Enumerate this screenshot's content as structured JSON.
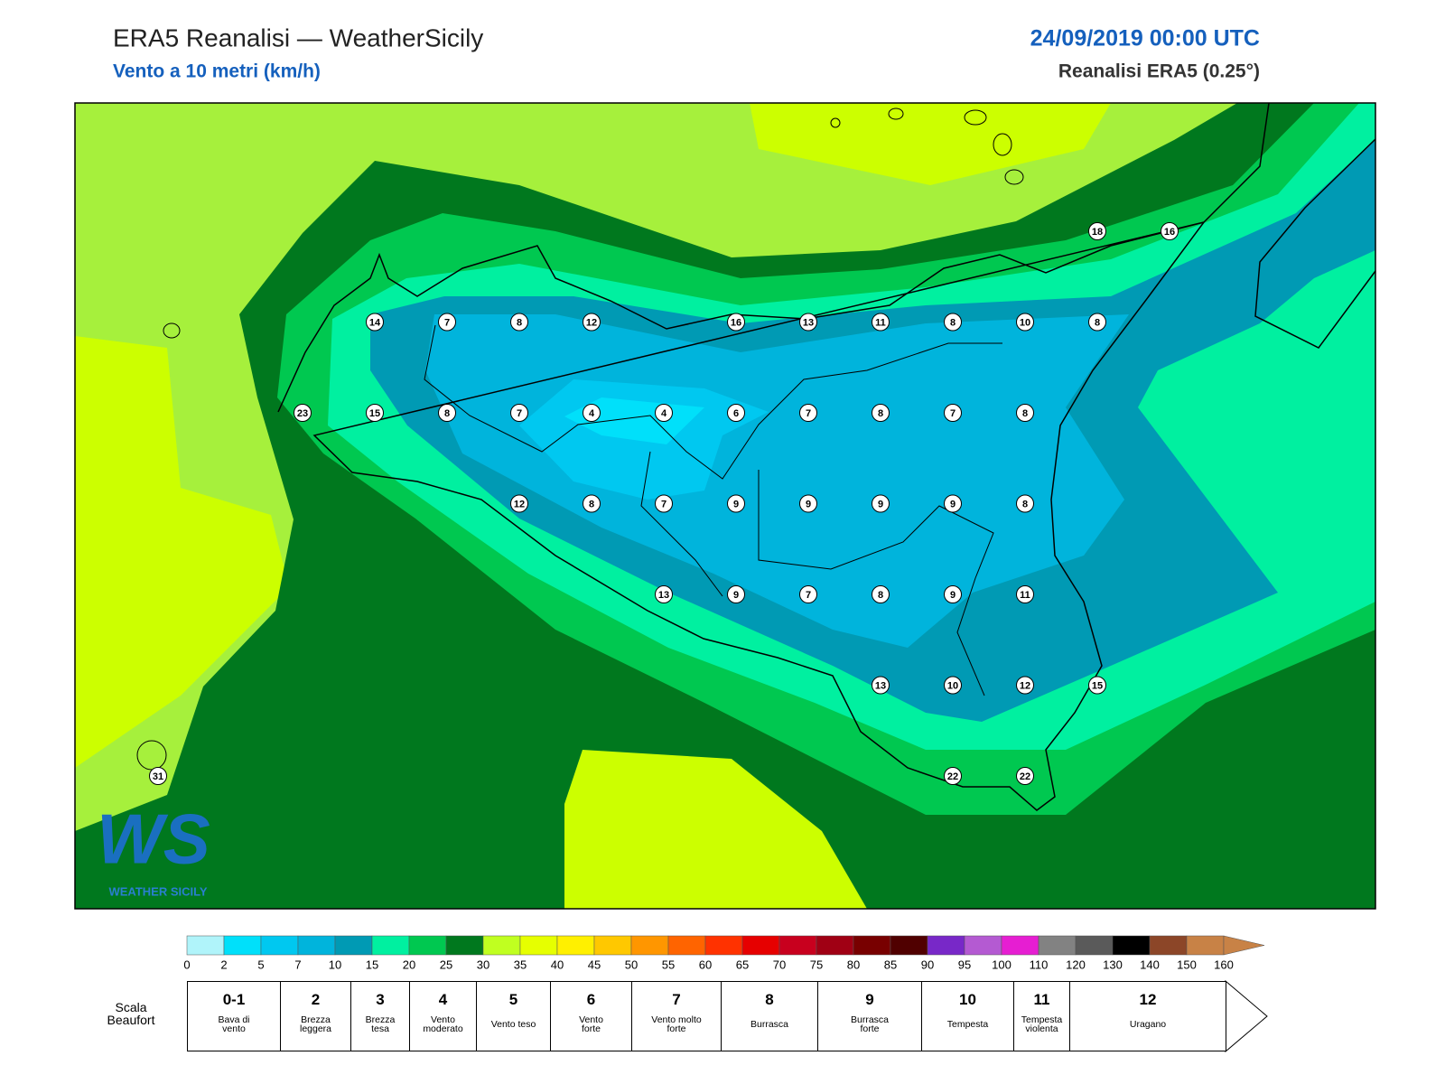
{
  "header": {
    "title": "ERA5 Reanalisi — WeatherSicily",
    "subtitle": "Vento a 10 metri (km/h)",
    "date": "24/09/2019 00:00 UTC",
    "source": "Reanalisi ERA5 (0.25°)"
  },
  "map": {
    "logo": "WS",
    "logo_caption": "WEATHER SICILY",
    "stations": [
      [
        null,
        null,
        null,
        null,
        null,
        null,
        null,
        null,
        null,
        null,
        null,
        null,
        null,
        18,
        16
      ],
      [
        null,
        null,
        null,
        14,
        7,
        8,
        12,
        null,
        16,
        13,
        11,
        8,
        10,
        8,
        null
      ],
      [
        null,
        null,
        23,
        15,
        8,
        7,
        4,
        4,
        6,
        7,
        8,
        7,
        8,
        null,
        null
      ],
      [
        null,
        null,
        null,
        null,
        null,
        12,
        8,
        7,
        9,
        9,
        9,
        9,
        8,
        null,
        null
      ],
      [
        null,
        null,
        null,
        null,
        null,
        null,
        null,
        13,
        9,
        7,
        8,
        9,
        11,
        null,
        null
      ],
      [
        null,
        null,
        null,
        null,
        null,
        null,
        null,
        null,
        null,
        null,
        13,
        10,
        12,
        15,
        null
      ],
      [
        31,
        null,
        null,
        null,
        null,
        null,
        null,
        null,
        null,
        null,
        null,
        22,
        22,
        null,
        null
      ]
    ]
  },
  "colorbar": {
    "ticks": [
      0,
      2,
      5,
      7,
      10,
      15,
      20,
      25,
      30,
      35,
      40,
      45,
      50,
      55,
      60,
      65,
      70,
      75,
      80,
      85,
      90,
      95,
      100,
      110,
      120,
      130,
      140,
      150,
      160
    ],
    "colors": [
      "#b0f4fa",
      "#00e0fa",
      "#00c8f0",
      "#00b4dc",
      "#009ab4",
      "#00f0a0",
      "#00c850",
      "#00781e",
      "#c0ff20",
      "#e6ff00",
      "#fff000",
      "#ffc800",
      "#ff9600",
      "#ff6400",
      "#ff3200",
      "#e60000",
      "#c8001e",
      "#a00014",
      "#780000",
      "#500000",
      "#7828c8",
      "#b45ad2",
      "#e61ed2",
      "#828282",
      "#5a5a5a",
      "#000000",
      "#8c4628",
      "#c88246"
    ]
  },
  "beaufort": {
    "title": "Scala\nBeaufort",
    "items": [
      {
        "force": "0-1",
        "label": "Bava di\nvento"
      },
      {
        "force": "2",
        "label": "Brezza\nleggera"
      },
      {
        "force": "3",
        "label": "Brezza\ntesa"
      },
      {
        "force": "4",
        "label": "Vento\nmoderato"
      },
      {
        "force": "5",
        "label": "Vento teso"
      },
      {
        "force": "6",
        "label": "Vento\nforte"
      },
      {
        "force": "7",
        "label": "Vento molto\nforte"
      },
      {
        "force": "8",
        "label": "Burrasca"
      },
      {
        "force": "9",
        "label": "Burrasca\nforte"
      },
      {
        "force": "10",
        "label": "Tempesta"
      },
      {
        "force": "11",
        "label": "Tempesta\nviolenta"
      },
      {
        "force": "12",
        "label": "Uragano"
      }
    ]
  }
}
